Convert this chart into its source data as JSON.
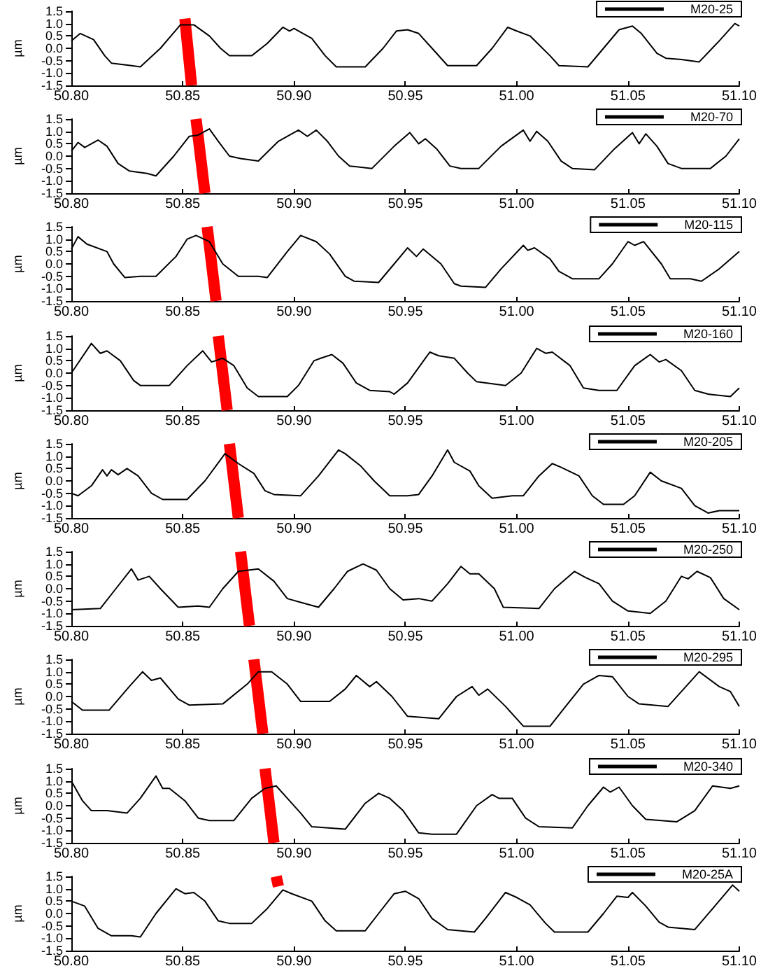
{
  "chart_data": [
    {
      "type": "line",
      "ylabel": "µm",
      "legend": "top right",
      "grid": false,
      "xlim": [
        50.8,
        51.1
      ],
      "ylim": [
        -1.5,
        1.5
      ],
      "xticks": [
        {
          "value": 50.8,
          "label": "50.80"
        },
        {
          "value": 50.85,
          "label": "50.85"
        },
        {
          "value": 50.9,
          "label": "50.90"
        },
        {
          "value": 50.95,
          "label": "50.95"
        },
        {
          "value": 51.0,
          "label": "51.00"
        },
        {
          "value": 51.05,
          "label": "51.05"
        },
        {
          "value": 51.1,
          "label": "51.10"
        }
      ],
      "yticks": [
        {
          "value": -1.5,
          "label": "-1.5"
        },
        {
          "value": -1.0,
          "label": "-1.0"
        },
        {
          "value": -0.5,
          "label": "-0.5"
        },
        {
          "value": 0,
          "label": "0.0"
        },
        {
          "value": 0.5,
          "label": "0.5"
        },
        {
          "value": 1.0,
          "label": "1.0"
        },
        {
          "value": 1.5,
          "label": "1.5"
        }
      ],
      "series": [
        {
          "color": "#ff0000",
          "x": [
            50.851,
            50.854
          ],
          "values": [
            1.2,
            -1.5
          ]
        },
        {
          "name": "M20-25",
          "color": "#000000",
          "x": [
            50.8,
            50.804,
            50.81,
            50.815,
            50.818,
            50.827,
            50.831,
            50.84,
            50.849,
            50.855,
            50.862,
            50.867,
            50.871,
            50.881,
            50.888,
            50.895,
            50.898,
            50.9,
            50.908,
            50.914,
            50.919,
            50.932,
            50.94,
            50.946,
            50.951,
            50.956,
            50.962,
            50.969,
            50.982,
            50.989,
            50.996,
            51.0,
            51.006,
            51.015,
            51.019,
            51.032,
            51.039,
            51.046,
            51.052,
            51.056,
            51.063,
            51.067,
            51.074,
            51.082,
            51.091,
            51.098,
            51.1
          ],
          "values": [
            0.3,
            0.6,
            0.35,
            -0.3,
            -0.6,
            -0.7,
            -0.75,
            0.0,
            0.95,
            0.95,
            0.5,
            0.0,
            -0.3,
            -0.3,
            0.2,
            0.85,
            0.7,
            0.8,
            0.4,
            -0.3,
            -0.75,
            -0.75,
            0.0,
            0.7,
            0.75,
            0.6,
            0.0,
            -0.7,
            -0.7,
            0.0,
            0.85,
            0.7,
            0.5,
            -0.3,
            -0.7,
            -0.75,
            0.0,
            0.75,
            0.9,
            0.6,
            -0.2,
            -0.4,
            -0.45,
            -0.55,
            0.3,
            1.0,
            0.9
          ]
        }
      ]
    },
    {
      "type": "line",
      "ylabel": "µm",
      "legend": "top right",
      "grid": false,
      "xlim": [
        50.8,
        51.1
      ],
      "ylim": [
        -1.5,
        1.5
      ],
      "xticks": [
        {
          "value": 50.8,
          "label": "50.80"
        },
        {
          "value": 50.85,
          "label": "50.85"
        },
        {
          "value": 50.9,
          "label": "50.90"
        },
        {
          "value": 50.95,
          "label": "50.95"
        },
        {
          "value": 51.0,
          "label": "51.00"
        },
        {
          "value": 51.05,
          "label": "51.05"
        },
        {
          "value": 51.1,
          "label": "51.10"
        }
      ],
      "yticks": [
        {
          "value": -1.5,
          "label": "-1.5"
        },
        {
          "value": -1.0,
          "label": "-1.0"
        },
        {
          "value": -0.5,
          "label": "-0.5"
        },
        {
          "value": 0,
          "label": "0.0"
        },
        {
          "value": 0.5,
          "label": "0.5"
        },
        {
          "value": 1.0,
          "label": "1.0"
        },
        {
          "value": 1.5,
          "label": "1.5"
        }
      ],
      "series": [
        {
          "color": "#ff0000",
          "x": [
            50.856,
            50.86
          ],
          "values": [
            1.5,
            -1.5
          ]
        },
        {
          "name": "M20-70",
          "color": "#000000",
          "x": [
            50.8,
            50.803,
            50.806,
            50.812,
            50.816,
            50.821,
            50.826,
            50.834,
            50.838,
            50.846,
            50.853,
            50.857,
            50.862,
            50.866,
            50.871,
            50.876,
            50.884,
            50.893,
            50.902,
            50.906,
            50.91,
            50.915,
            50.92,
            50.925,
            50.935,
            50.945,
            50.952,
            50.956,
            50.959,
            50.964,
            50.97,
            50.975,
            50.983,
            50.993,
            51.003,
            51.006,
            51.009,
            51.014,
            51.02,
            51.025,
            51.035,
            51.044,
            51.052,
            51.055,
            51.058,
            51.063,
            51.068,
            51.074,
            51.087,
            51.094,
            51.1
          ],
          "values": [
            0.2,
            0.55,
            0.35,
            0.65,
            0.4,
            -0.3,
            -0.6,
            -0.7,
            -0.8,
            0.0,
            0.8,
            0.85,
            1.1,
            0.6,
            0.0,
            -0.1,
            -0.2,
            0.6,
            1.05,
            0.8,
            1.05,
            0.6,
            0.0,
            -0.4,
            -0.5,
            0.4,
            0.95,
            0.5,
            0.7,
            0.3,
            -0.4,
            -0.5,
            -0.5,
            0.4,
            1.05,
            0.6,
            1.0,
            0.6,
            -0.2,
            -0.5,
            -0.55,
            0.3,
            0.95,
            0.5,
            0.9,
            0.4,
            -0.3,
            -0.5,
            -0.5,
            0.0,
            0.7
          ]
        }
      ]
    },
    {
      "type": "line",
      "ylabel": "µm",
      "legend": "top right",
      "grid": false,
      "xlim": [
        50.8,
        51.1
      ],
      "ylim": [
        -1.5,
        1.5
      ],
      "xticks": [
        {
          "value": 50.8,
          "label": "50.80"
        },
        {
          "value": 50.85,
          "label": "50.85"
        },
        {
          "value": 50.9,
          "label": "50.90"
        },
        {
          "value": 50.95,
          "label": "50.95"
        },
        {
          "value": 51.0,
          "label": "51.00"
        },
        {
          "value": 51.05,
          "label": "51.05"
        },
        {
          "value": 51.1,
          "label": "51.10"
        }
      ],
      "yticks": [
        {
          "value": -1.5,
          "label": "-1.5"
        },
        {
          "value": -1.0,
          "label": "-1.0"
        },
        {
          "value": -0.5,
          "label": "-0.5"
        },
        {
          "value": 0,
          "label": "0.0"
        },
        {
          "value": 0.5,
          "label": "0.5"
        },
        {
          "value": 1.0,
          "label": "1.0"
        },
        {
          "value": 1.5,
          "label": "1.5"
        }
      ],
      "series": [
        {
          "color": "#ff0000",
          "x": [
            50.861,
            50.865
          ],
          "values": [
            1.5,
            -1.5
          ]
        },
        {
          "name": "M20-115",
          "color": "#000000",
          "x": [
            50.8,
            50.803,
            50.807,
            50.816,
            50.819,
            50.824,
            50.831,
            50.838,
            50.847,
            50.852,
            50.856,
            50.862,
            50.868,
            50.875,
            50.884,
            50.888,
            50.897,
            50.903,
            50.91,
            50.916,
            50.923,
            50.927,
            50.938,
            50.945,
            50.951,
            50.955,
            50.958,
            50.966,
            50.972,
            50.975,
            50.986,
            50.993,
            51.003,
            51.005,
            51.008,
            51.015,
            51.019,
            51.025,
            51.037,
            51.043,
            51.05,
            51.053,
            51.057,
            51.065,
            51.069,
            51.078,
            51.083,
            51.091,
            51.1
          ],
          "values": [
            0.6,
            1.1,
            0.8,
            0.5,
            0.0,
            -0.55,
            -0.5,
            -0.5,
            0.3,
            1.0,
            1.15,
            0.9,
            0.0,
            -0.5,
            -0.5,
            -0.55,
            0.5,
            1.15,
            0.9,
            0.4,
            -0.5,
            -0.7,
            -0.75,
            0.0,
            0.65,
            0.3,
            0.6,
            0.0,
            -0.8,
            -0.9,
            -0.95,
            -0.2,
            0.75,
            0.55,
            0.65,
            0.2,
            -0.3,
            -0.6,
            -0.6,
            0.0,
            0.9,
            0.75,
            0.9,
            0.0,
            -0.6,
            -0.6,
            -0.7,
            -0.2,
            0.5
          ]
        }
      ]
    },
    {
      "type": "line",
      "ylabel": "µm",
      "legend": "top right",
      "grid": false,
      "xlim": [
        50.8,
        51.1
      ],
      "ylim": [
        -1.5,
        1.5
      ],
      "xticks": [
        {
          "value": 50.8,
          "label": "50.80"
        },
        {
          "value": 50.85,
          "label": "50.85"
        },
        {
          "value": 50.9,
          "label": "50.90"
        },
        {
          "value": 50.95,
          "label": "50.95"
        },
        {
          "value": 51.0,
          "label": "51.00"
        },
        {
          "value": 51.05,
          "label": "51.05"
        },
        {
          "value": 51.1,
          "label": "51.10"
        }
      ],
      "yticks": [
        {
          "value": -1.5,
          "label": "-1.5"
        },
        {
          "value": -1.0,
          "label": "-1.0"
        },
        {
          "value": -0.5,
          "label": "-0.5"
        },
        {
          "value": 0,
          "label": "0.0"
        },
        {
          "value": 0.5,
          "label": "0.5"
        },
        {
          "value": 1.0,
          "label": "1.0"
        },
        {
          "value": 1.5,
          "label": "1.5"
        }
      ],
      "series": [
        {
          "color": "#ff0000",
          "x": [
            50.866,
            50.87
          ],
          "values": [
            1.5,
            -1.5
          ]
        },
        {
          "name": "M20-160",
          "color": "#000000",
          "x": [
            50.8,
            50.809,
            50.813,
            50.816,
            50.822,
            50.828,
            50.831,
            50.844,
            50.852,
            50.859,
            50.863,
            50.868,
            50.873,
            50.879,
            50.884,
            50.897,
            50.902,
            50.909,
            50.912,
            50.917,
            50.922,
            50.928,
            50.934,
            50.943,
            50.945,
            50.951,
            50.961,
            50.965,
            50.972,
            50.978,
            50.982,
            50.995,
            51.002,
            51.009,
            51.013,
            51.016,
            51.024,
            51.03,
            51.037,
            51.045,
            51.053,
            51.06,
            51.064,
            51.067,
            51.074,
            51.08,
            51.086,
            51.096,
            51.1
          ],
          "values": [
            0.0,
            1.2,
            0.8,
            0.9,
            0.5,
            -0.3,
            -0.5,
            -0.5,
            0.3,
            0.9,
            0.45,
            0.6,
            0.3,
            -0.6,
            -0.95,
            -0.95,
            -0.5,
            0.5,
            0.6,
            0.75,
            0.4,
            -0.4,
            -0.7,
            -0.75,
            -0.85,
            -0.4,
            0.85,
            0.7,
            0.6,
            0.0,
            -0.35,
            -0.5,
            0.0,
            1.0,
            0.8,
            0.85,
            0.3,
            -0.6,
            -0.7,
            -0.7,
            0.3,
            0.75,
            0.45,
            0.55,
            0.1,
            -0.7,
            -0.85,
            -0.95,
            -0.6
          ]
        }
      ]
    },
    {
      "type": "line",
      "ylabel": "µm",
      "legend": "top right",
      "grid": false,
      "xlim": [
        50.8,
        51.1
      ],
      "ylim": [
        -1.5,
        1.5
      ],
      "xticks": [
        {
          "value": 50.8,
          "label": "50.80"
        },
        {
          "value": 50.85,
          "label": "50.85"
        },
        {
          "value": 50.9,
          "label": "50.90"
        },
        {
          "value": 50.95,
          "label": "50.95"
        },
        {
          "value": 51.0,
          "label": "51.00"
        },
        {
          "value": 51.05,
          "label": "51.05"
        },
        {
          "value": 51.1,
          "label": "51.10"
        }
      ],
      "yticks": [
        {
          "value": -1.5,
          "label": "-1.5"
        },
        {
          "value": -1.0,
          "label": "-1.0"
        },
        {
          "value": -0.5,
          "label": "-0.5"
        },
        {
          "value": 0,
          "label": "0.0"
        },
        {
          "value": 0.5,
          "label": "0.5"
        },
        {
          "value": 1.0,
          "label": "1.0"
        },
        {
          "value": 1.5,
          "label": "1.5"
        }
      ],
      "series": [
        {
          "color": "#ff0000",
          "x": [
            50.871,
            50.875
          ],
          "values": [
            1.5,
            -1.5
          ]
        },
        {
          "name": "M20-205",
          "color": "#000000",
          "x": [
            50.8,
            50.803,
            50.809,
            50.814,
            50.816,
            50.818,
            50.821,
            50.825,
            50.83,
            50.836,
            50.841,
            50.852,
            50.86,
            50.869,
            50.875,
            50.882,
            50.887,
            50.891,
            50.903,
            50.911,
            50.92,
            50.923,
            50.93,
            50.936,
            50.943,
            50.951,
            50.956,
            50.962,
            50.969,
            50.972,
            50.979,
            50.983,
            50.989,
            50.998,
            51.003,
            51.01,
            51.016,
            51.02,
            51.028,
            51.034,
            51.039,
            51.048,
            51.053,
            51.06,
            51.065,
            51.074,
            51.08,
            51.086,
            51.091,
            51.1
          ],
          "values": [
            -0.5,
            -0.6,
            -0.2,
            0.45,
            0.2,
            0.45,
            0.25,
            0.5,
            0.2,
            -0.5,
            -0.75,
            -0.75,
            0.0,
            1.1,
            0.7,
            0.3,
            -0.4,
            -0.55,
            -0.6,
            0.2,
            1.25,
            1.1,
            0.6,
            0.0,
            -0.6,
            -0.6,
            -0.55,
            0.2,
            1.25,
            0.75,
            0.4,
            -0.2,
            -0.7,
            -0.6,
            -0.6,
            0.2,
            0.7,
            0.55,
            0.2,
            -0.6,
            -0.95,
            -0.95,
            -0.6,
            0.35,
            0.0,
            -0.3,
            -1.0,
            -1.3,
            -1.2,
            -1.2
          ]
        }
      ]
    },
    {
      "type": "line",
      "ylabel": "µm",
      "legend": "top right",
      "grid": false,
      "xlim": [
        50.8,
        51.1
      ],
      "ylim": [
        -1.5,
        1.5
      ],
      "xticks": [
        {
          "value": 50.8,
          "label": "50.80"
        },
        {
          "value": 50.85,
          "label": "50.85"
        },
        {
          "value": 50.9,
          "label": "50.90"
        },
        {
          "value": 50.95,
          "label": "50.95"
        },
        {
          "value": 51.0,
          "label": "51.00"
        },
        {
          "value": 51.05,
          "label": "51.05"
        },
        {
          "value": 51.1,
          "label": "51.10"
        }
      ],
      "yticks": [
        {
          "value": -1.5,
          "label": "-1.5"
        },
        {
          "value": -1.0,
          "label": "-1.0"
        },
        {
          "value": -0.5,
          "label": "-0.5"
        },
        {
          "value": 0,
          "label": "0.0"
        },
        {
          "value": 0.5,
          "label": "0.5"
        },
        {
          "value": 1.0,
          "label": "1.0"
        },
        {
          "value": 1.5,
          "label": "1.5"
        }
      ],
      "series": [
        {
          "color": "#ff0000",
          "x": [
            50.876,
            50.88
          ],
          "values": [
            1.5,
            -1.5
          ]
        },
        {
          "name": "M20-250",
          "color": "#000000",
          "x": [
            50.8,
            50.813,
            50.82,
            50.827,
            50.83,
            50.835,
            50.84,
            50.848,
            50.857,
            50.862,
            50.868,
            50.875,
            50.884,
            50.891,
            50.897,
            50.903,
            50.911,
            50.918,
            50.924,
            50.931,
            50.937,
            50.943,
            50.949,
            50.956,
            50.962,
            50.969,
            50.975,
            50.979,
            50.983,
            50.99,
            50.994,
            51.01,
            51.017,
            51.026,
            51.031,
            51.037,
            51.043,
            51.05,
            51.06,
            51.067,
            51.074,
            51.077,
            51.081,
            51.087,
            51.093,
            51.1
          ],
          "values": [
            -0.85,
            -0.8,
            0.0,
            0.8,
            0.35,
            0.5,
            0.0,
            -0.75,
            -0.7,
            -0.75,
            0.0,
            0.7,
            0.8,
            0.3,
            -0.4,
            -0.55,
            -0.75,
            0.0,
            0.7,
            1.0,
            0.75,
            0.0,
            -0.45,
            -0.4,
            -0.5,
            0.2,
            0.9,
            0.6,
            0.6,
            0.0,
            -0.75,
            -0.8,
            0.0,
            0.7,
            0.45,
            0.2,
            -0.5,
            -0.9,
            -1.0,
            -0.5,
            0.5,
            0.4,
            0.7,
            0.45,
            -0.4,
            -0.85
          ]
        }
      ]
    },
    {
      "type": "line",
      "ylabel": "µm",
      "legend": "top right",
      "grid": false,
      "xlim": [
        50.8,
        51.1
      ],
      "ylim": [
        -1.5,
        1.5
      ],
      "xticks": [
        {
          "value": 50.8,
          "label": "50.80"
        },
        {
          "value": 50.85,
          "label": "50.85"
        },
        {
          "value": 50.9,
          "label": "50.90"
        },
        {
          "value": 50.95,
          "label": "50.95"
        },
        {
          "value": 51.0,
          "label": "51.00"
        },
        {
          "value": 51.05,
          "label": "51.05"
        },
        {
          "value": 51.1,
          "label": "51.10"
        }
      ],
      "yticks": [
        {
          "value": -1.5,
          "label": "-1.5"
        },
        {
          "value": -1.0,
          "label": "-1.0"
        },
        {
          "value": -0.5,
          "label": "-0.5"
        },
        {
          "value": 0,
          "label": "0.0"
        },
        {
          "value": 0.5,
          "label": "0.5"
        },
        {
          "value": 1.0,
          "label": "1.0"
        },
        {
          "value": 1.5,
          "label": "1.5"
        }
      ],
      "series": [
        {
          "color": "#ff0000",
          "x": [
            50.882,
            50.886
          ],
          "values": [
            1.5,
            -1.5
          ]
        },
        {
          "name": "M20-295",
          "color": "#000000",
          "x": [
            50.8,
            50.805,
            50.817,
            50.826,
            50.832,
            50.836,
            50.84,
            50.848,
            50.853,
            50.868,
            50.879,
            50.884,
            50.89,
            50.897,
            50.903,
            50.916,
            50.923,
            50.928,
            50.934,
            50.937,
            50.944,
            50.951,
            50.965,
            50.973,
            50.98,
            50.983,
            50.987,
            50.995,
            51.003,
            51.015,
            51.022,
            51.03,
            51.037,
            51.043,
            51.05,
            51.055,
            51.068,
            51.074,
            51.082,
            51.091,
            51.096,
            51.1
          ],
          "values": [
            -0.2,
            -0.55,
            -0.55,
            0.4,
            1.0,
            0.65,
            0.75,
            -0.1,
            -0.35,
            -0.3,
            0.5,
            1.0,
            1.0,
            0.5,
            -0.2,
            -0.2,
            0.3,
            0.85,
            0.4,
            0.6,
            0.0,
            -0.8,
            -0.9,
            0.0,
            0.4,
            0.05,
            0.3,
            -0.4,
            -1.2,
            -1.2,
            -0.4,
            0.5,
            0.85,
            0.8,
            0.0,
            -0.3,
            -0.4,
            0.2,
            1.0,
            0.4,
            0.2,
            -0.4
          ]
        }
      ]
    },
    {
      "type": "line",
      "ylabel": "µm",
      "legend": "top right",
      "grid": false,
      "xlim": [
        50.8,
        51.1
      ],
      "ylim": [
        -1.5,
        1.5
      ],
      "xticks": [
        {
          "value": 50.8,
          "label": "50.80"
        },
        {
          "value": 50.85,
          "label": "50.85"
        },
        {
          "value": 50.9,
          "label": "50.90"
        },
        {
          "value": 50.95,
          "label": "50.95"
        },
        {
          "value": 51.0,
          "label": "51.00"
        },
        {
          "value": 51.05,
          "label": "51.05"
        },
        {
          "value": 51.1,
          "label": "51.10"
        }
      ],
      "yticks": [
        {
          "value": -1.5,
          "label": "-1.5"
        },
        {
          "value": -1.0,
          "label": "-1.0"
        },
        {
          "value": -0.5,
          "label": "-0.5"
        },
        {
          "value": 0,
          "label": "0.0"
        },
        {
          "value": 0.5,
          "label": "0.5"
        },
        {
          "value": 1.0,
          "label": "1.0"
        },
        {
          "value": 1.5,
          "label": "1.5"
        }
      ],
      "series": [
        {
          "color": "#ff0000",
          "x": [
            50.887,
            50.891
          ],
          "values": [
            1.5,
            -1.5
          ]
        },
        {
          "name": "M20-340",
          "color": "#000000",
          "x": [
            50.8,
            50.805,
            50.809,
            50.816,
            50.825,
            50.831,
            50.838,
            50.841,
            50.844,
            50.851,
            50.857,
            50.862,
            50.873,
            50.881,
            50.887,
            50.892,
            50.897,
            50.903,
            50.908,
            50.923,
            50.932,
            50.938,
            50.943,
            50.949,
            50.956,
            50.962,
            50.973,
            50.982,
            50.989,
            50.992,
            50.998,
            51.004,
            51.01,
            51.025,
            51.032,
            51.039,
            51.042,
            51.046,
            51.052,
            51.058,
            51.072,
            51.08,
            51.088,
            51.096,
            51.1
          ],
          "values": [
            1.0,
            0.2,
            -0.2,
            -0.2,
            -0.3,
            0.3,
            1.2,
            0.7,
            0.7,
            0.2,
            -0.5,
            -0.6,
            -0.6,
            0.3,
            0.7,
            0.8,
            0.3,
            -0.3,
            -0.85,
            -0.95,
            0.1,
            0.5,
            0.3,
            -0.2,
            -1.1,
            -1.15,
            -1.15,
            0.0,
            0.45,
            0.3,
            0.3,
            -0.5,
            -0.85,
            -0.9,
            0.0,
            0.75,
            0.55,
            0.75,
            0.0,
            -0.55,
            -0.65,
            -0.2,
            0.8,
            0.7,
            0.8
          ]
        }
      ]
    },
    {
      "type": "line",
      "ylabel": "µm",
      "legend": "top right",
      "grid": false,
      "xlim": [
        50.8,
        51.1
      ],
      "ylim": [
        -1.5,
        1.5
      ],
      "xticks": [
        {
          "value": 50.8,
          "label": "50.80"
        },
        {
          "value": 50.85,
          "label": "50.85"
        },
        {
          "value": 50.9,
          "label": "50.90"
        },
        {
          "value": 50.95,
          "label": "50.95"
        },
        {
          "value": 51.0,
          "label": "51.00"
        },
        {
          "value": 51.05,
          "label": "51.05"
        },
        {
          "value": 51.1,
          "label": "51.10"
        }
      ],
      "yticks": [
        {
          "value": -1.5,
          "label": "-1.5"
        },
        {
          "value": -1.0,
          "label": "-1.0"
        },
        {
          "value": -0.5,
          "label": "-0.5"
        },
        {
          "value": 0,
          "label": "0.0"
        },
        {
          "value": 0.5,
          "label": "0.5"
        },
        {
          "value": 1.0,
          "label": "1.0"
        },
        {
          "value": 1.5,
          "label": "1.5"
        }
      ],
      "series": [
        {
          "color": "#ff0000",
          "x": [
            50.892,
            50.893
          ],
          "values": [
            1.5,
            1.1
          ]
        },
        {
          "name": "M20-25A",
          "color": "#000000",
          "x": [
            50.8,
            50.806,
            50.812,
            50.818,
            50.827,
            50.831,
            50.838,
            50.847,
            50.851,
            50.855,
            50.86,
            50.866,
            50.871,
            50.881,
            50.888,
            50.895,
            50.899,
            50.908,
            50.914,
            50.919,
            50.932,
            50.938,
            50.945,
            50.95,
            50.956,
            50.962,
            50.969,
            50.981,
            50.986,
            50.995,
            51.0,
            51.006,
            51.013,
            51.017,
            51.032,
            51.039,
            51.045,
            51.05,
            51.052,
            51.058,
            51.064,
            51.068,
            51.08,
            51.089,
            51.097,
            51.1
          ],
          "values": [
            0.5,
            0.3,
            -0.6,
            -0.9,
            -0.9,
            -0.95,
            0.0,
            1.0,
            0.8,
            0.85,
            0.5,
            -0.3,
            -0.4,
            -0.4,
            0.2,
            0.95,
            0.8,
            0.5,
            -0.3,
            -0.7,
            -0.7,
            0.0,
            0.8,
            0.9,
            0.6,
            -0.2,
            -0.65,
            -0.75,
            -0.2,
            0.85,
            0.65,
            0.35,
            -0.4,
            -0.75,
            -0.75,
            0.0,
            0.7,
            0.65,
            0.85,
            0.3,
            -0.35,
            -0.55,
            -0.65,
            0.3,
            1.15,
            0.9
          ]
        }
      ]
    }
  ]
}
